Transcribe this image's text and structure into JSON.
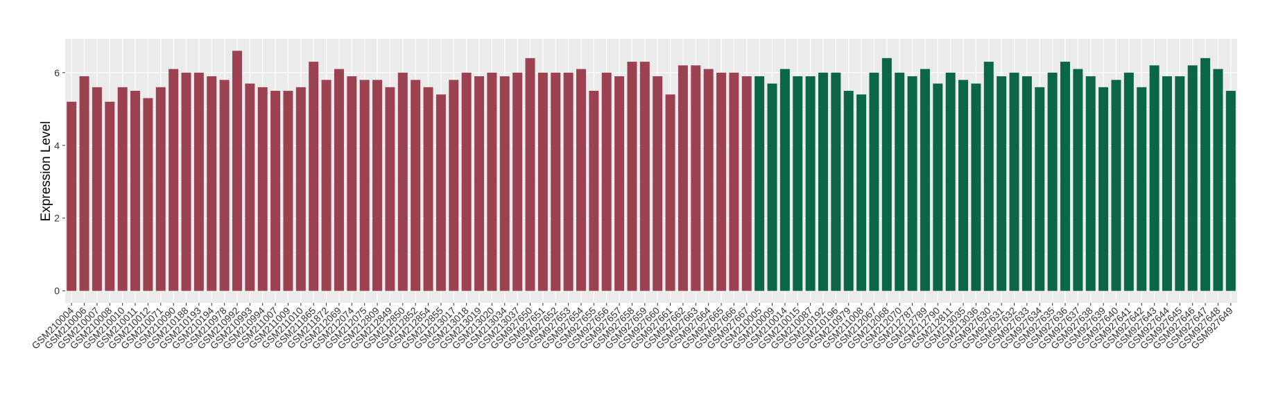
{
  "chart_data": {
    "type": "bar",
    "y_label": "Expression Level",
    "categories": [
      "GSM210004",
      "GSM210006",
      "GSM210007",
      "GSM210008",
      "GSM210010",
      "GSM210011",
      "GSM210012",
      "GSM210071",
      "GSM210090",
      "GSM210188",
      "GSM210193",
      "GSM210194",
      "GSM210978",
      "GSM210992",
      "GSM210993",
      "GSM210994",
      "GSM211007",
      "GSM211009",
      "GSM211010",
      "GSM211865",
      "GSM211872",
      "GSM212069",
      "GSM212074",
      "GSM212075",
      "GSM212809",
      "GSM212849",
      "GSM212850",
      "GSM212852",
      "GSM212854",
      "GSM212855",
      "GSM213017",
      "GSM213018",
      "GSM213019",
      "GSM213020",
      "GSM213034",
      "GSM213037",
      "GSM927650",
      "GSM927651",
      "GSM927652",
      "GSM927653",
      "GSM927654",
      "GSM927655",
      "GSM927656",
      "GSM927657",
      "GSM927658",
      "GSM927659",
      "GSM927660",
      "GSM927661",
      "GSM927662",
      "GSM927663",
      "GSM927664",
      "GSM927665",
      "GSM927666",
      "GSM927667",
      "GSM210005",
      "GSM210009",
      "GSM210014",
      "GSM210015",
      "GSM210087",
      "GSM210192",
      "GSM210196",
      "GSM210979",
      "GSM211008",
      "GSM212067",
      "GSM212068",
      "GSM212070",
      "GSM212787",
      "GSM212789",
      "GSM212790",
      "GSM212811",
      "GSM213035",
      "GSM213036",
      "GSM927630",
      "GSM927631",
      "GSM927632",
      "GSM927633",
      "GSM927634",
      "GSM927635",
      "GSM927636",
      "GSM927637",
      "GSM927638",
      "GSM927639",
      "GSM927640",
      "GSM927641",
      "GSM927642",
      "GSM927643",
      "GSM927644",
      "GSM927645",
      "GSM927646",
      "GSM927647",
      "GSM927648",
      "GSM927649"
    ],
    "values": [
      5.2,
      5.9,
      5.6,
      5.2,
      5.6,
      5.5,
      5.3,
      5.6,
      6.1,
      6.0,
      6.0,
      5.9,
      5.8,
      6.6,
      5.7,
      5.6,
      5.5,
      5.5,
      5.6,
      6.3,
      5.8,
      6.1,
      5.9,
      5.8,
      5.8,
      5.6,
      6.0,
      5.8,
      5.6,
      5.4,
      5.8,
      6.0,
      5.9,
      6.0,
      5.9,
      6.0,
      6.4,
      6.0,
      6.0,
      6.0,
      6.1,
      5.5,
      6.0,
      5.9,
      6.3,
      6.3,
      5.9,
      5.4,
      6.2,
      6.2,
      6.1,
      6.0,
      6.0,
      5.9,
      5.9,
      5.7,
      6.1,
      5.9,
      5.9,
      6.0,
      6.0,
      5.5,
      5.4,
      6.0,
      6.4,
      6.0,
      5.9,
      6.1,
      5.7,
      6.0,
      5.8,
      5.7,
      6.3,
      5.9,
      6.0,
      5.9,
      5.6,
      6.0,
      6.3,
      6.1,
      5.9,
      5.6,
      5.8,
      6.0,
      5.6,
      6.2,
      5.9,
      5.9,
      6.2,
      6.4,
      6.1,
      5.5
    ],
    "colors": [
      "#9b4150",
      "#9b4150",
      "#9b4150",
      "#9b4150",
      "#9b4150",
      "#9b4150",
      "#9b4150",
      "#9b4150",
      "#9b4150",
      "#9b4150",
      "#9b4150",
      "#9b4150",
      "#9b4150",
      "#9b4150",
      "#9b4150",
      "#9b4150",
      "#9b4150",
      "#9b4150",
      "#9b4150",
      "#9b4150",
      "#9b4150",
      "#9b4150",
      "#9b4150",
      "#9b4150",
      "#9b4150",
      "#9b4150",
      "#9b4150",
      "#9b4150",
      "#9b4150",
      "#9b4150",
      "#9b4150",
      "#9b4150",
      "#9b4150",
      "#9b4150",
      "#9b4150",
      "#9b4150",
      "#9b4150",
      "#9b4150",
      "#9b4150",
      "#9b4150",
      "#9b4150",
      "#9b4150",
      "#9b4150",
      "#9b4150",
      "#9b4150",
      "#9b4150",
      "#9b4150",
      "#9b4150",
      "#9b4150",
      "#9b4150",
      "#9b4150",
      "#9b4150",
      "#9b4150",
      "#9b4150",
      "#0a6644",
      "#0a6644",
      "#0a6644",
      "#0a6644",
      "#0a6644",
      "#0a6644",
      "#0a6644",
      "#0a6644",
      "#0a6644",
      "#0a6644",
      "#0a6644",
      "#0a6644",
      "#0a6644",
      "#0a6644",
      "#0a6644",
      "#0a6644",
      "#0a6644",
      "#0a6644",
      "#0a6644",
      "#0a6644",
      "#0a6644",
      "#0a6644",
      "#0a6644",
      "#0a6644",
      "#0a6644",
      "#0a6644",
      "#0a6644",
      "#0a6644",
      "#0a6644",
      "#0a6644",
      "#0a6644",
      "#0a6644",
      "#0a6644",
      "#0a6644",
      "#0a6644",
      "#0a6644",
      "#0a6644",
      "#0a6644"
    ],
    "ylim": [
      -0.33,
      6.93
    ],
    "yticks": [
      0,
      2,
      4,
      6
    ],
    "grid": true
  }
}
